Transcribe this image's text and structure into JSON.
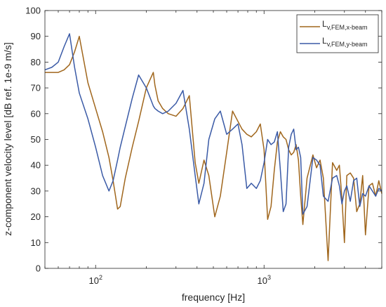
{
  "chart_data": {
    "type": "line",
    "xlabel": "frequency [Hz]",
    "ylabel": "z-component velocity level [dB ref. 1e-9 m/s]",
    "xscale": "log",
    "xlim": [
      50,
      5000
    ],
    "ylim": [
      0,
      100
    ],
    "yticks": [
      0,
      10,
      20,
      30,
      40,
      50,
      60,
      70,
      80,
      90,
      100
    ],
    "xticks": [
      {
        "value": 100,
        "base": "10",
        "exp": "2"
      },
      {
        "value": 1000,
        "base": "10",
        "exp": "3"
      }
    ],
    "grid": false,
    "legend": "top-right",
    "series": [
      {
        "main": "L",
        "sub": "v,FEM,x-beam",
        "color": "#a0661c",
        "x": [
          50,
          55,
          60,
          65,
          70,
          75,
          80,
          90,
          100,
          110,
          120,
          127,
          135,
          140,
          150,
          165,
          180,
          200,
          220,
          225,
          235,
          250,
          270,
          300,
          330,
          360,
          390,
          410,
          440,
          470,
          510,
          550,
          600,
          650,
          700,
          740,
          790,
          840,
          900,
          950,
          1000,
          1050,
          1100,
          1150,
          1200,
          1250,
          1300,
          1350,
          1400,
          1450,
          1500,
          1550,
          1600,
          1650,
          1700,
          1800,
          1950,
          2050,
          2150,
          2250,
          2400,
          2550,
          2700,
          2800,
          2900,
          3000,
          3100,
          3250,
          3400,
          3550,
          3700,
          3850,
          4000,
          4200,
          4400,
          4600,
          4800,
          5000
        ],
        "y": [
          76,
          76,
          76,
          77,
          79,
          84,
          90,
          72,
          62,
          53,
          43,
          34,
          23,
          24,
          35,
          47,
          57,
          70,
          76,
          71,
          65,
          62,
          60,
          59,
          62,
          67,
          41,
          33,
          42,
          36,
          20,
          28,
          45,
          61,
          57,
          54,
          52,
          51,
          53,
          56,
          46,
          19,
          24,
          38,
          49,
          53,
          51,
          50,
          46,
          44,
          45,
          48,
          42,
          28,
          17,
          35,
          44,
          39,
          42,
          35,
          3,
          41,
          38,
          40,
          27,
          10,
          36,
          37,
          35,
          22,
          25,
          36,
          13,
          32,
          33,
          28,
          34,
          29
        ]
      },
      {
        "main": "L",
        "sub": "v,FEM,y-beam",
        "color": "#3a5aa6",
        "x": [
          50,
          55,
          60,
          65,
          70,
          75,
          80,
          90,
          100,
          110,
          120,
          127,
          135,
          140,
          150,
          165,
          180,
          200,
          220,
          225,
          235,
          250,
          270,
          300,
          330,
          360,
          390,
          410,
          440,
          470,
          510,
          550,
          600,
          650,
          700,
          740,
          790,
          840,
          900,
          950,
          1000,
          1050,
          1100,
          1150,
          1200,
          1250,
          1300,
          1350,
          1400,
          1450,
          1500,
          1550,
          1600,
          1650,
          1700,
          1800,
          1950,
          2050,
          2150,
          2250,
          2400,
          2550,
          2700,
          2800,
          2900,
          3000,
          3100,
          3250,
          3400,
          3550,
          3700,
          3850,
          4000,
          4200,
          4400,
          4600,
          4800,
          5000
        ],
        "y": [
          77,
          78,
          80,
          86,
          91,
          78,
          68,
          58,
          47,
          36,
          30,
          34,
          42,
          47,
          55,
          66,
          75,
          70,
          63,
          62,
          61,
          60,
          61,
          64,
          69,
          54,
          36,
          25,
          33,
          50,
          58,
          61,
          52,
          54,
          56,
          48,
          31,
          33,
          31,
          34,
          41,
          50,
          48,
          49,
          53,
          38,
          22,
          25,
          47,
          52,
          54,
          46,
          47,
          43,
          21,
          24,
          43,
          42,
          40,
          28,
          26,
          35,
          36,
          32,
          25,
          30,
          32,
          26,
          34,
          35,
          24,
          29,
          28,
          32,
          30,
          28,
          31,
          30
        ]
      }
    ]
  }
}
